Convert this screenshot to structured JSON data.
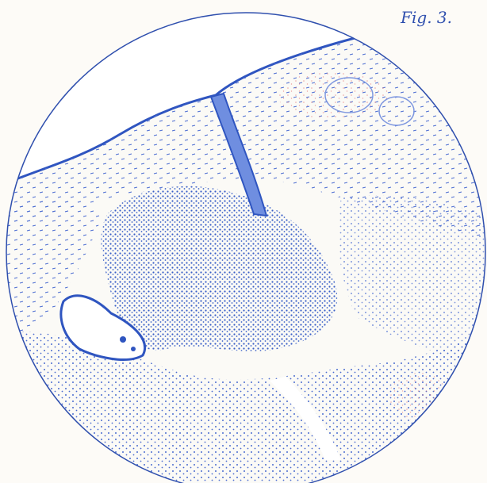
{
  "figure": {
    "label": "Fig. 3.",
    "ink_color": "#2f55c0",
    "stain_color": "#d94a4a",
    "paper_color": "#fdfbf7",
    "subject": "circular-microscope-field-illustration"
  }
}
